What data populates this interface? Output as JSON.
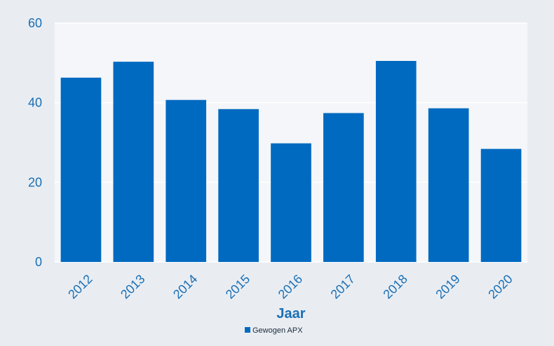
{
  "chart_data": {
    "type": "bar",
    "categories": [
      "2012",
      "2013",
      "2014",
      "2015",
      "2016",
      "2017",
      "2018",
      "2019",
      "2020"
    ],
    "series": [
      {
        "name": "Gewogen APX",
        "values": [
          46.3,
          50.3,
          40.7,
          38.4,
          29.8,
          37.4,
          50.5,
          38.6,
          28.4
        ]
      }
    ],
    "title": "",
    "xlabel": "Jaar",
    "ylabel": "",
    "ylim": [
      0,
      60
    ],
    "yticks": [
      0,
      20,
      40,
      60
    ],
    "grid": true,
    "legend_position": "bottom-center",
    "colors": {
      "bar": "#006ac1",
      "plot_background": "#f4f6f9",
      "page_background": "#e9edf2",
      "gridline": "#ffffff",
      "tick_text": "#1a6fb5",
      "legend_text": "#1b2a3a"
    }
  }
}
